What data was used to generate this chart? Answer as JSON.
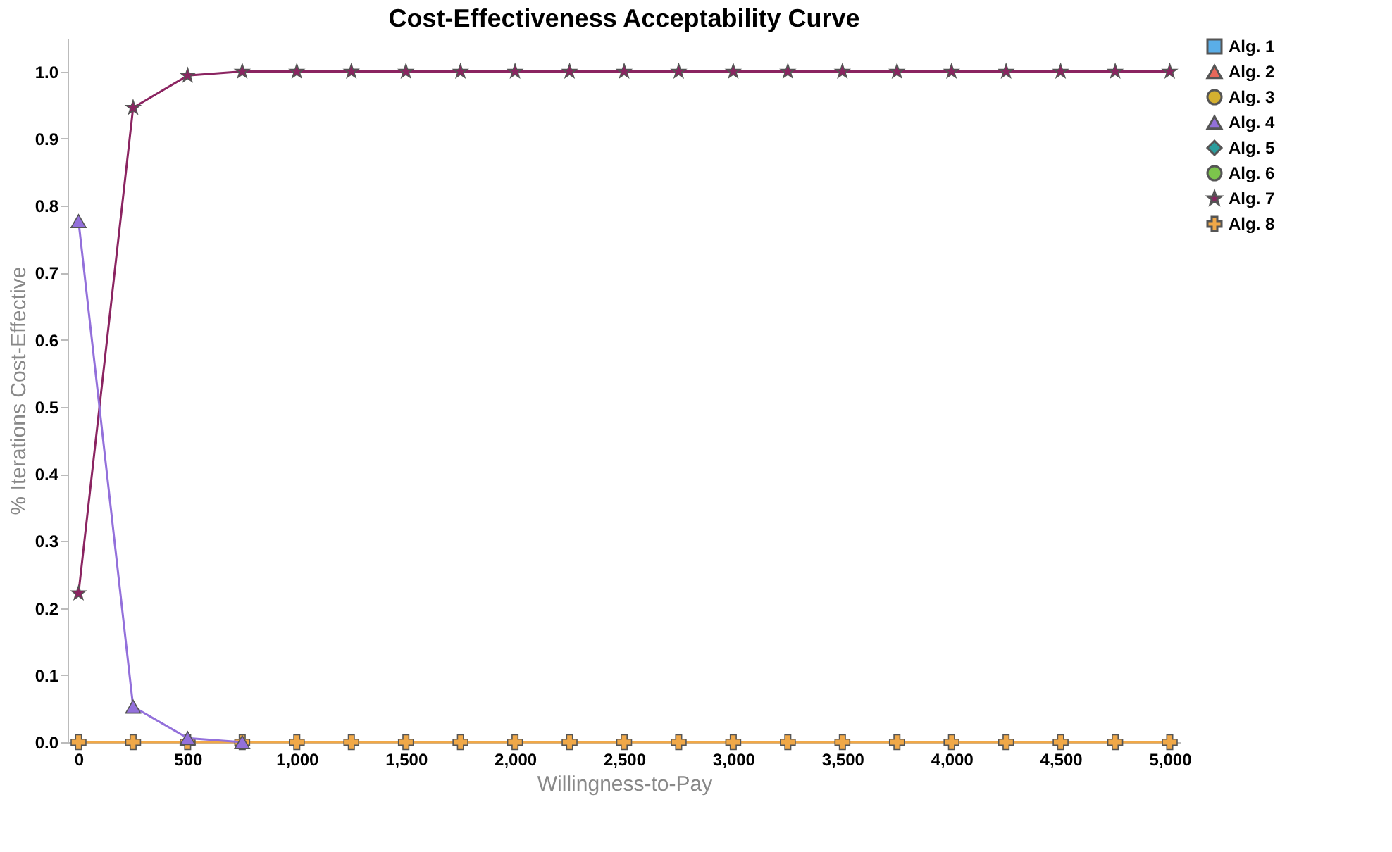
{
  "chart_data": {
    "type": "line",
    "title": "Cost-Effectiveness Acceptability Curve",
    "xlabel": "Willingness-to-Pay",
    "ylabel": "% Iterations Cost-Effective",
    "x": [
      0,
      250,
      500,
      750,
      1000,
      1250,
      1500,
      1750,
      2000,
      2250,
      2500,
      2750,
      3000,
      3250,
      3500,
      3750,
      4000,
      4250,
      4500,
      4750,
      5000
    ],
    "series": [
      {
        "name": "Alg. 1",
        "color": "#5aaee8",
        "marker": "square",
        "values": [
          null,
          null,
          null,
          null,
          null,
          null,
          null,
          null,
          null,
          null,
          null,
          null,
          null,
          null,
          null,
          null,
          null,
          null,
          null,
          null,
          null
        ]
      },
      {
        "name": "Alg. 2",
        "color": "#e8685a",
        "marker": "triangle",
        "values": [
          null,
          null,
          null,
          null,
          null,
          null,
          null,
          null,
          null,
          null,
          null,
          null,
          null,
          null,
          null,
          null,
          null,
          null,
          null,
          null,
          null
        ]
      },
      {
        "name": "Alg. 3",
        "color": "#d4b030",
        "marker": "circle",
        "values": [
          null,
          null,
          null,
          null,
          null,
          null,
          null,
          null,
          null,
          null,
          null,
          null,
          null,
          null,
          null,
          null,
          null,
          null,
          null,
          null,
          null
        ]
      },
      {
        "name": "Alg. 4",
        "color": "#9370db",
        "marker": "triangle",
        "values": [
          0.777,
          0.053,
          0.006,
          0,
          null,
          null,
          null,
          null,
          null,
          null,
          null,
          null,
          null,
          null,
          null,
          null,
          null,
          null,
          null,
          null,
          null
        ]
      },
      {
        "name": "Alg. 5",
        "color": "#2a9d9d",
        "marker": "diamond",
        "values": [
          null,
          null,
          null,
          null,
          null,
          null,
          null,
          null,
          null,
          null,
          null,
          null,
          null,
          null,
          null,
          null,
          null,
          null,
          null,
          null,
          null
        ]
      },
      {
        "name": "Alg. 6",
        "color": "#7cc44c",
        "marker": "circle",
        "values": [
          null,
          null,
          null,
          null,
          null,
          null,
          null,
          null,
          null,
          null,
          null,
          null,
          null,
          null,
          null,
          null,
          null,
          null,
          null,
          null,
          null
        ]
      },
      {
        "name": "Alg. 7",
        "color": "#8b2461",
        "marker": "star",
        "values": [
          0.222,
          0.946,
          0.994,
          1,
          1,
          1,
          1,
          1,
          1,
          1,
          1,
          1,
          1,
          1,
          1,
          1,
          1,
          1,
          1,
          1,
          1
        ]
      },
      {
        "name": "Alg. 8",
        "color": "#f0a848",
        "marker": "cross",
        "values": [
          0,
          0,
          0,
          0,
          0,
          0,
          0,
          0,
          0,
          0,
          0,
          0,
          0,
          0,
          0,
          0,
          0,
          0,
          0,
          0,
          0
        ]
      }
    ],
    "xlim": [
      -50,
      5050
    ],
    "ylim": [
      0,
      1.05
    ],
    "xticks": [
      0,
      500,
      {
        "value": 1000,
        "label": "1,000"
      },
      {
        "value": 1500,
        "label": "1,500"
      },
      {
        "value": 2000,
        "label": "2,000"
      },
      {
        "value": 2500,
        "label": "2,500"
      },
      {
        "value": 3000,
        "label": "3,000"
      },
      {
        "value": 3500,
        "label": "3,500"
      },
      {
        "value": 4000,
        "label": "4,000"
      },
      {
        "value": 4500,
        "label": "4,500"
      },
      {
        "value": 5000,
        "label": "5,000"
      }
    ],
    "yticks": [
      {
        "value": 0,
        "label": "0.0"
      },
      0.1,
      0.2,
      0.3,
      0.4,
      0.5,
      0.6,
      0.7,
      0.8,
      0.9,
      {
        "value": 1,
        "label": "1.0"
      }
    ],
    "grid": false,
    "legend": "top right",
    "line_style": "solid"
  }
}
